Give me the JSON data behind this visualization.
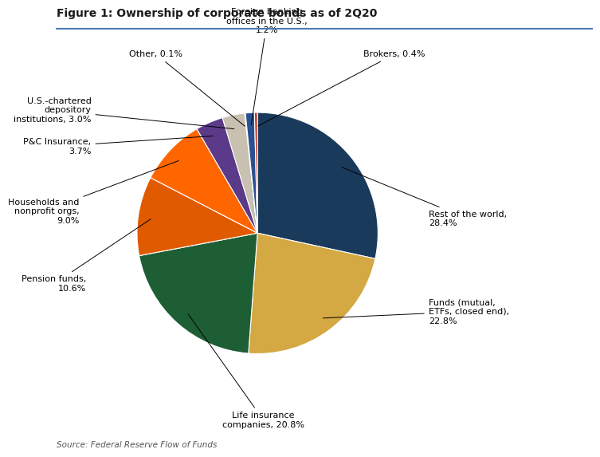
{
  "title": "Figure 1: Ownership of corporate bonds as of 2Q20",
  "source": "Source: Federal Reserve Flow of Funds",
  "slices": [
    {
      "label": "Rest of the world,\n28.4%",
      "value": 28.4,
      "color": "#1a3a5c"
    },
    {
      "label": "Funds (mutual,\nETFs, closed end),\n22.8%",
      "value": 22.8,
      "color": "#d4a843"
    },
    {
      "label": "Life insurance\ncompanies, 20.8%",
      "value": 20.8,
      "color": "#1e5e35"
    },
    {
      "label": "Pension funds,\n10.6%",
      "value": 10.6,
      "color": "#e05a00"
    },
    {
      "label": "Households and\nnonprofit orgs,\n9.0%",
      "value": 9.0,
      "color": "#ff6600"
    },
    {
      "label": "P&C Insurance,\n3.7%",
      "value": 3.7,
      "color": "#5b3a8a"
    },
    {
      "label": "U.S.-chartered\ndepository\ninstitutions, 3.0%",
      "value": 3.0,
      "color": "#c8c0b0"
    },
    {
      "label": "Other, 0.1%",
      "value": 0.1,
      "color": "#d0c8b8"
    },
    {
      "label": "Foreign banking\noffices in the U.S.,\n1.2%",
      "value": 1.2,
      "color": "#2a5090"
    },
    {
      "label": "Brokers, 0.4%",
      "value": 0.4,
      "color": "#c0392b"
    }
  ],
  "background_color": "#ffffff",
  "title_fontsize": 10,
  "label_fontsize": 8,
  "source_fontsize": 7.5
}
